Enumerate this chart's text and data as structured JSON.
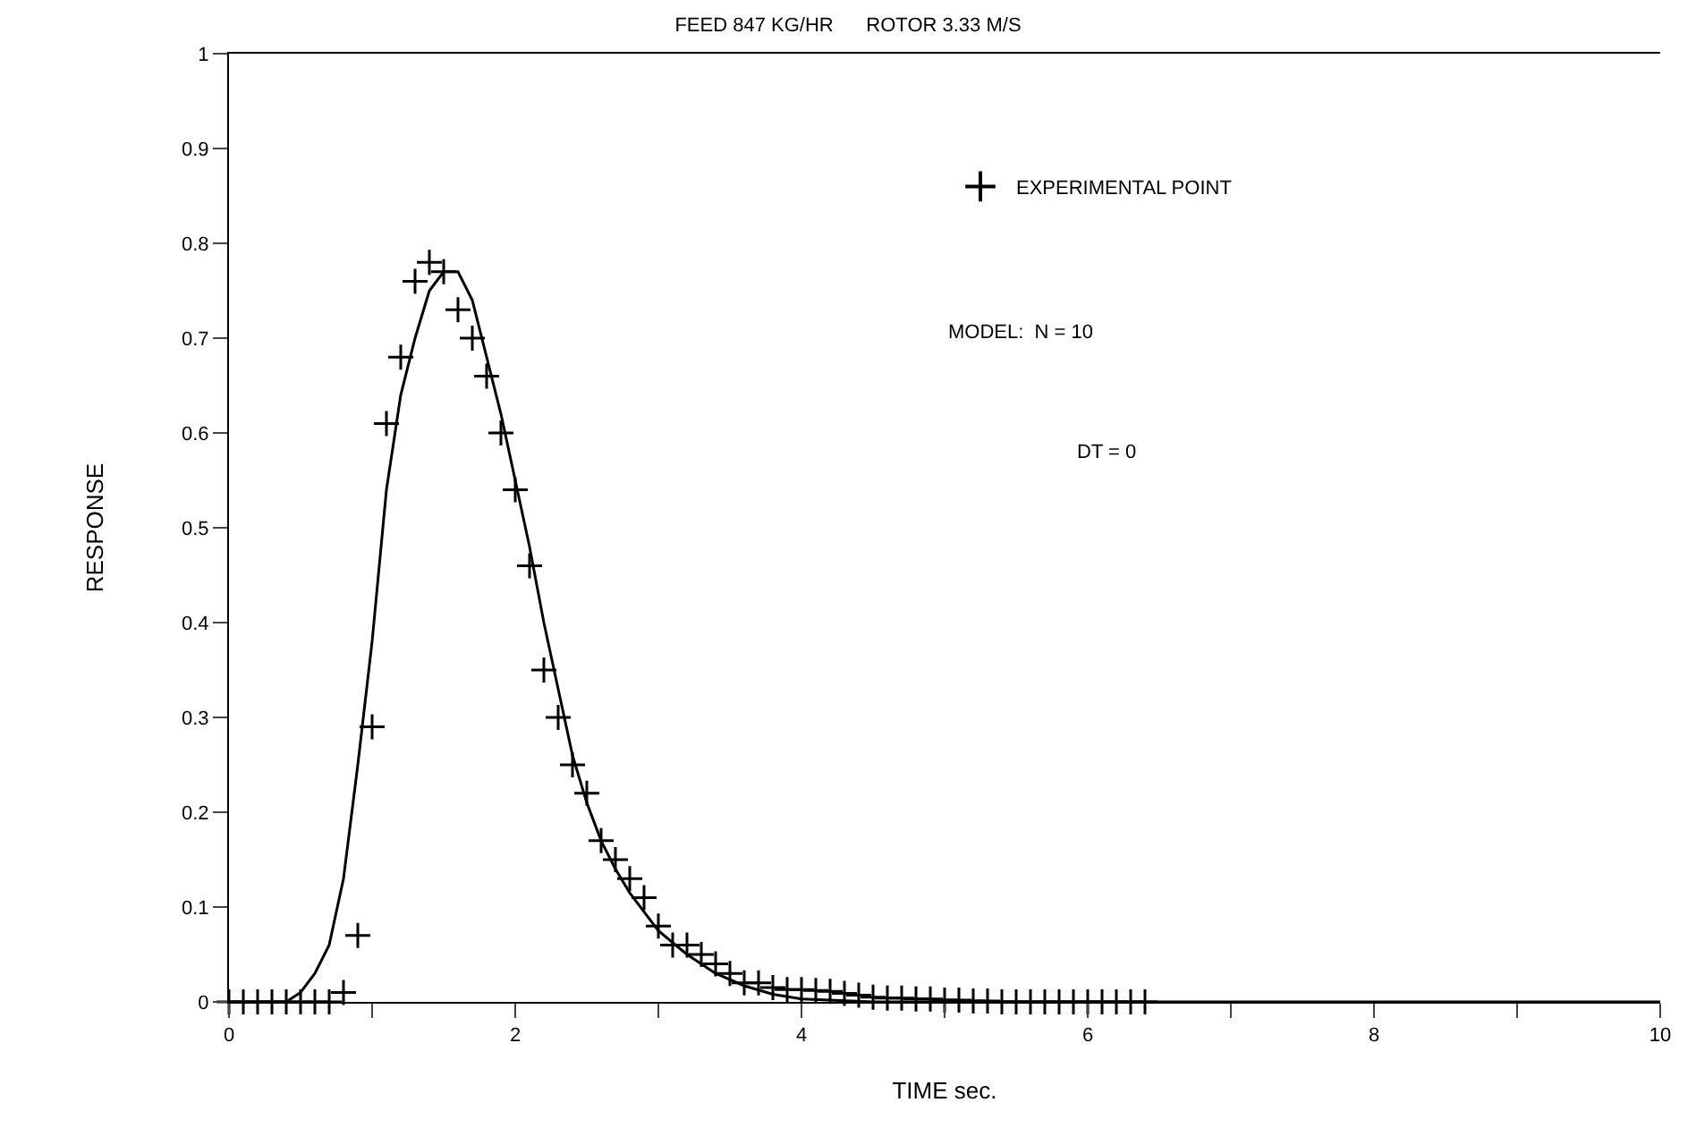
{
  "chart_data": {
    "type": "scatter",
    "title": "FEED 847 KG/HR      ROTOR 3.33 M/S",
    "xlabel": "TIME sec.",
    "ylabel": "RESPONSE",
    "xlim": [
      0,
      10
    ],
    "xticks": [
      0,
      {
        "value": 1,
        "label": null
      },
      2,
      {
        "value": 3,
        "label": null
      },
      4,
      {
        "value": 5,
        "label": null
      },
      6,
      {
        "value": 7,
        "label": null
      },
      8,
      {
        "value": 9,
        "label": null
      },
      10
    ],
    "ylim": [
      0,
      1
    ],
    "yticks": [
      0,
      0.1,
      0.2,
      0.3,
      0.4,
      0.5,
      0.6,
      0.7,
      0.8,
      0.9,
      1
    ],
    "grid": false,
    "legend": "top right",
    "marker": "cross",
    "series": [
      {
        "name": "EXPERIMENTAL POINT",
        "color": "#000000",
        "x": [
          0,
          0.1,
          0.2,
          0.3,
          0.4,
          0.5,
          0.6,
          0.7,
          0.8,
          0.9,
          1.0,
          1.1,
          1.2,
          1.3,
          1.4,
          1.5,
          1.6,
          1.7,
          1.8,
          1.9,
          2.0,
          2.1,
          2.2,
          2.3,
          2.4,
          2.5,
          2.6,
          2.7,
          2.8,
          2.9,
          3.0,
          3.1,
          3.2,
          3.3,
          3.4,
          3.5,
          3.6,
          3.7,
          3.8,
          3.9,
          4.0,
          4.1,
          4.2,
          4.3,
          4.4,
          4.5,
          4.6,
          4.7,
          4.8,
          4.9,
          5.0,
          5.1,
          5.2,
          5.3,
          5.4,
          5.5,
          5.6,
          5.7,
          5.8,
          5.9,
          6.0,
          6.1,
          6.2,
          6.3,
          6.4
        ],
        "values": [
          0,
          0,
          0,
          0,
          0,
          0,
          0,
          0,
          0.01,
          0.07,
          0.29,
          0.61,
          0.68,
          0.76,
          0.78,
          0.77,
          0.73,
          0.7,
          0.66,
          0.6,
          0.54,
          0.46,
          0.35,
          0.3,
          0.25,
          0.22,
          0.17,
          0.15,
          0.13,
          0.11,
          0.08,
          0.06,
          0.06,
          0.05,
          0.04,
          0.03,
          0.02,
          0.02,
          0.015,
          0.013,
          0.013,
          0.012,
          0.011,
          0.009,
          0.007,
          0.005,
          0.004,
          0.004,
          0.003,
          0.003,
          0.002,
          0.002,
          0.001,
          0.001,
          0,
          0,
          0,
          0,
          0,
          0,
          0,
          0,
          0,
          0,
          0
        ]
      },
      {
        "type": "line",
        "color": "#000000",
        "line_style": "solid",
        "marker": "none",
        "x": [
          0,
          0.4,
          0.5,
          0.6,
          0.7,
          0.8,
          0.9,
          1.0,
          1.1,
          1.2,
          1.3,
          1.4,
          1.5,
          1.6,
          1.7,
          1.8,
          1.9,
          2.0,
          2.1,
          2.2,
          2.3,
          2.4,
          2.5,
          2.6,
          2.7,
          2.8,
          2.9,
          3.0,
          3.2,
          3.4,
          3.6,
          3.8,
          4.0,
          4.5,
          10
        ],
        "values": [
          0,
          0,
          0.01,
          0.03,
          0.06,
          0.13,
          0.25,
          0.38,
          0.54,
          0.64,
          0.7,
          0.75,
          0.77,
          0.77,
          0.74,
          0.68,
          0.62,
          0.55,
          0.48,
          0.4,
          0.33,
          0.26,
          0.21,
          0.17,
          0.14,
          0.115,
          0.095,
          0.075,
          0.05,
          0.03,
          0.017,
          0.008,
          0.003,
          0,
          0
        ]
      }
    ],
    "annotations": [
      "MODEL:  N = 10",
      "DT = 0"
    ]
  }
}
